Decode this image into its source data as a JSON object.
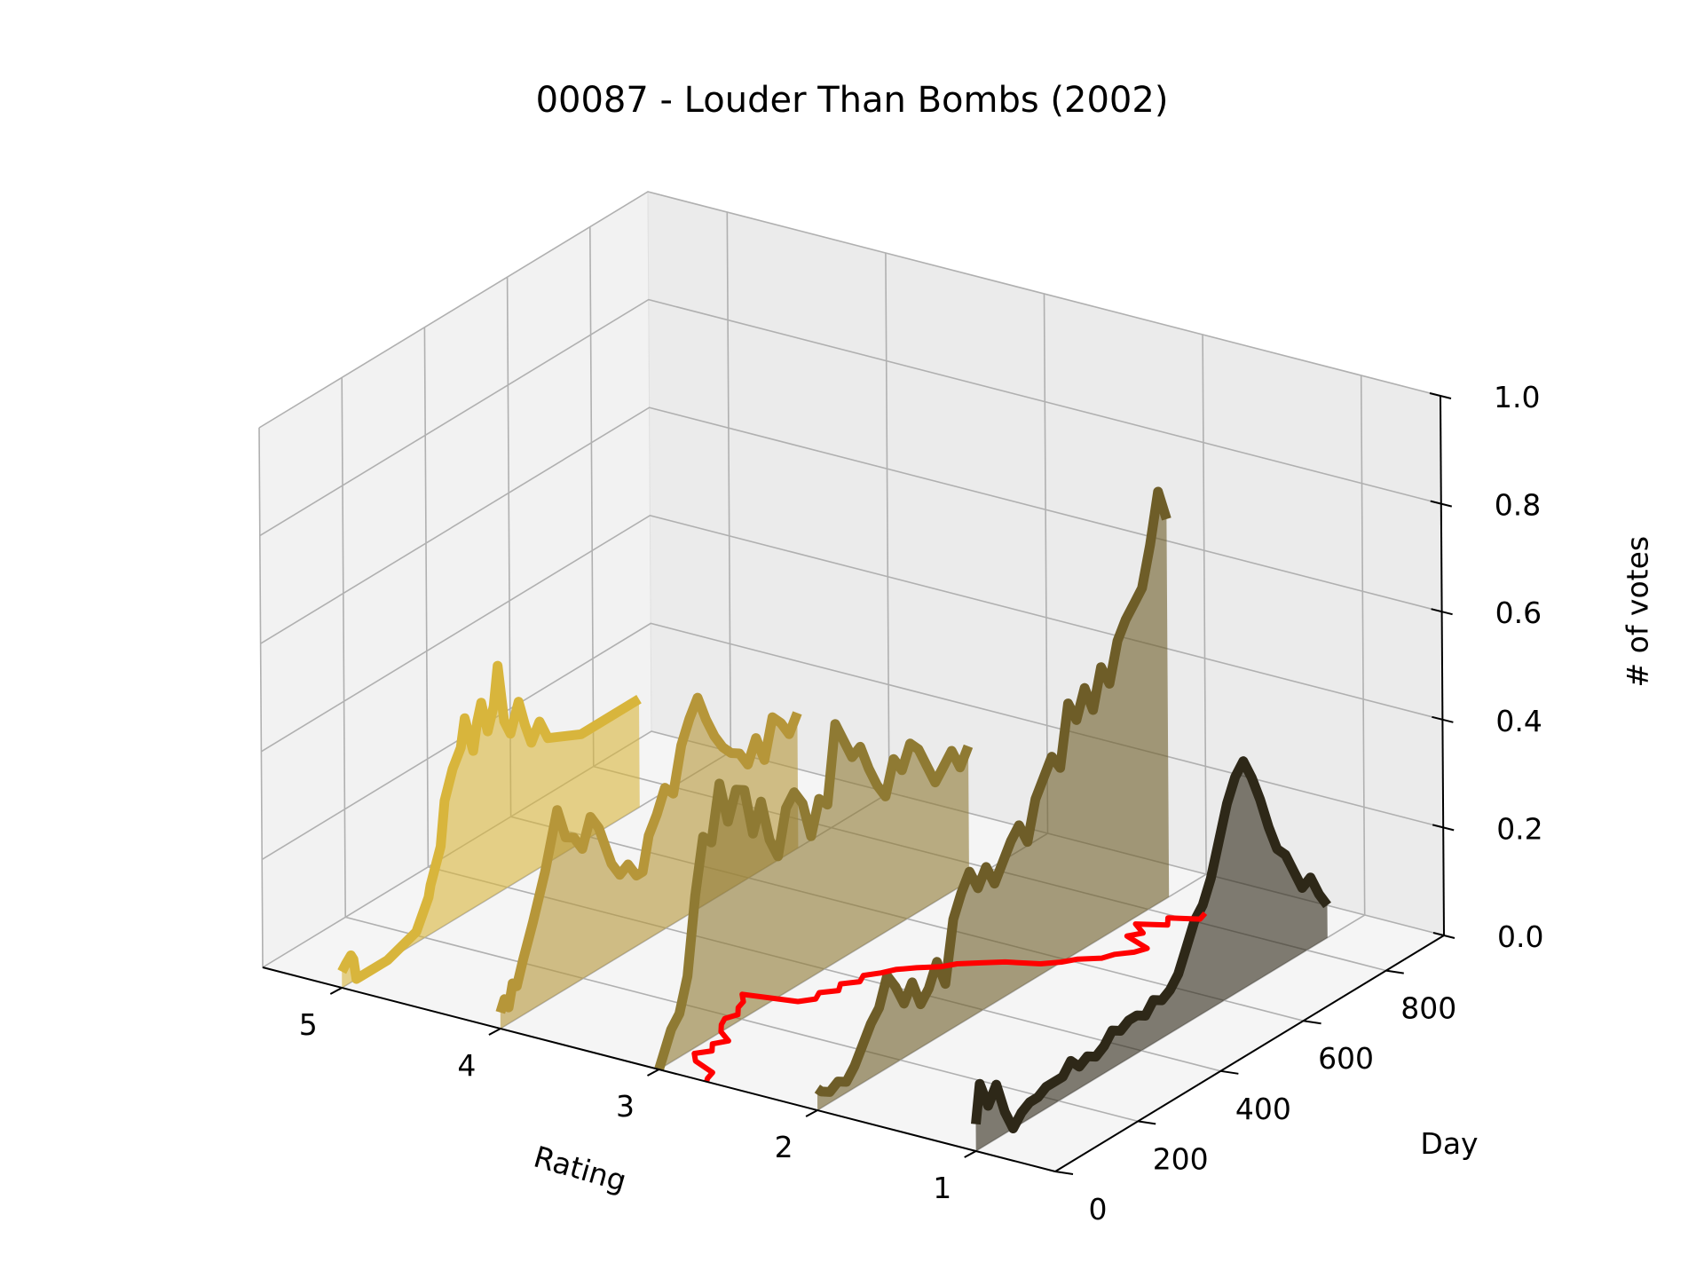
{
  "chart_data": {
    "type": "line",
    "view": "3d",
    "title": "00087 - Louder Than Bombs (2002)",
    "xlabel": "Rating",
    "ylabel": "Day",
    "zlabel": "# of votes",
    "x_ticks": [
      "5",
      "4",
      "3",
      "2",
      "1"
    ],
    "y_ticks": [
      "0",
      "200",
      "400",
      "600",
      "800"
    ],
    "z_ticks": [
      "0.0",
      "0.2",
      "0.4",
      "0.6",
      "0.8",
      "1.0"
    ],
    "xlim": [
      0.5,
      5.5
    ],
    "ylim": [
      0,
      940
    ],
    "zlim": [
      0,
      1
    ],
    "grid": true,
    "series": [
      {
        "rating": 5,
        "color": "#d8b53c",
        "days": [
          0,
          10,
          22,
          28,
          35,
          60,
          110,
          180,
          210,
          215,
          240,
          250,
          270,
          290,
          300,
          320,
          330,
          340,
          355,
          370,
          380,
          395,
          410,
          430,
          445,
          460,
          480,
          500,
          580,
          700,
          720
        ],
        "values": [
          0.03,
          0.04,
          0.05,
          0.04,
          0.0,
          0.0,
          0.0,
          0.02,
          0.07,
          0.09,
          0.15,
          0.23,
          0.28,
          0.31,
          0.36,
          0.29,
          0.34,
          0.37,
          0.31,
          0.35,
          0.42,
          0.31,
          0.28,
          0.33,
          0.28,
          0.24,
          0.27,
          0.23,
          0.2,
          0.2,
          0.2
        ]
      },
      {
        "rating": 4,
        "color": "#b69639",
        "days": [
          0,
          10,
          20,
          30,
          40,
          55,
          80,
          110,
          140,
          160,
          180,
          200,
          220,
          240,
          255,
          270,
          290,
          310,
          330,
          345,
          360,
          380,
          400,
          420,
          440,
          460,
          480,
          500,
          520,
          540,
          560,
          580,
          600,
          620,
          640,
          660,
          680,
          700,
          720
        ],
        "values": [
          0.03,
          0.05,
          0.03,
          0.07,
          0.06,
          0.1,
          0.16,
          0.24,
          0.34,
          0.28,
          0.27,
          0.24,
          0.29,
          0.26,
          0.22,
          0.18,
          0.15,
          0.16,
          0.13,
          0.13,
          0.19,
          0.22,
          0.26,
          0.24,
          0.32,
          0.36,
          0.39,
          0.34,
          0.3,
          0.27,
          0.25,
          0.24,
          0.21,
          0.25,
          0.2,
          0.27,
          0.25,
          0.22,
          0.25
        ]
      },
      {
        "rating": 3,
        "color": "#8f7a33",
        "days": [
          0,
          10,
          30,
          50,
          70,
          90,
          110,
          130,
          150,
          170,
          190,
          210,
          230,
          250,
          270,
          290,
          310,
          330,
          350,
          370,
          390,
          410,
          430,
          450,
          470,
          490,
          510,
          530,
          550,
          570,
          590,
          610,
          630,
          650,
          670,
          690,
          710,
          730,
          750
        ],
        "values": [
          0.0,
          0.02,
          0.06,
          0.08,
          0.14,
          0.28,
          0.38,
          0.36,
          0.46,
          0.38,
          0.43,
          0.42,
          0.33,
          0.38,
          0.3,
          0.26,
          0.34,
          0.36,
          0.33,
          0.26,
          0.32,
          0.3,
          0.44,
          0.4,
          0.36,
          0.37,
          0.32,
          0.28,
          0.25,
          0.31,
          0.28,
          0.32,
          0.3,
          0.26,
          0.22,
          0.24,
          0.26,
          0.22,
          0.25
        ]
      },
      {
        "rating": 2,
        "color": "#6e5d28",
        "days": [
          0,
          10,
          30,
          50,
          70,
          90,
          110,
          130,
          150,
          170,
          190,
          210,
          230,
          250,
          270,
          290,
          310,
          330,
          350,
          370,
          390,
          410,
          430,
          450,
          470,
          490,
          510,
          530,
          550,
          570,
          590,
          610,
          630,
          650,
          670,
          690,
          710,
          730,
          750,
          770,
          790,
          810,
          830,
          850
        ],
        "values": [
          0.04,
          0.03,
          0.02,
          0.03,
          0.02,
          0.04,
          0.07,
          0.1,
          0.12,
          0.17,
          0.14,
          0.1,
          0.13,
          0.08,
          0.1,
          0.14,
          0.09,
          0.2,
          0.24,
          0.27,
          0.23,
          0.26,
          0.22,
          0.25,
          0.28,
          0.3,
          0.26,
          0.33,
          0.36,
          0.39,
          0.36,
          0.47,
          0.43,
          0.48,
          0.43,
          0.5,
          0.46,
          0.53,
          0.56,
          0.58,
          0.6,
          0.67,
          0.76,
          0.7
        ]
      },
      {
        "rating": 1,
        "color": "#2e2818",
        "days": [
          0,
          10,
          30,
          50,
          70,
          90,
          110,
          130,
          150,
          170,
          190,
          210,
          230,
          250,
          270,
          290,
          310,
          330,
          350,
          370,
          390,
          410,
          430,
          450,
          470,
          490,
          510,
          530,
          550,
          570,
          590,
          610,
          630,
          650,
          670,
          690,
          710,
          730,
          750,
          770,
          790,
          810,
          830,
          850
        ],
        "values": [
          0.05,
          0.12,
          0.07,
          0.1,
          0.04,
          0.0,
          0.02,
          0.03,
          0.03,
          0.04,
          0.04,
          0.04,
          0.06,
          0.04,
          0.05,
          0.04,
          0.05,
          0.07,
          0.06,
          0.07,
          0.07,
          0.06,
          0.08,
          0.07,
          0.08,
          0.1,
          0.14,
          0.18,
          0.2,
          0.24,
          0.3,
          0.36,
          0.4,
          0.42,
          0.38,
          0.33,
          0.27,
          0.22,
          0.2,
          0.16,
          0.12,
          0.13,
          0.09,
          0.06
        ]
      },
      {
        "rating": "mean",
        "color": "#ff0000",
        "days": [
          0,
          10,
          30,
          50,
          70,
          90,
          110,
          130,
          150,
          170,
          190,
          210,
          230,
          250,
          270,
          290,
          310,
          330,
          350,
          370,
          390,
          410,
          430,
          450,
          470,
          490,
          510,
          530,
          550,
          570,
          590,
          610,
          630,
          650,
          670,
          690,
          710,
          730,
          750,
          770,
          790,
          810,
          830
        ],
        "values": [
          0.0,
          0.0,
          0.0,
          0.0,
          0.0,
          0.0,
          0.0,
          0.0,
          0.0,
          0.0,
          0.0,
          0.0,
          0.0,
          0.0,
          0.0,
          0.0,
          0.0,
          0.0,
          0.0,
          0.0,
          0.0,
          0.0,
          0.0,
          0.0,
          0.0,
          0.0,
          0.0,
          0.0,
          0.0,
          0.0,
          0.0,
          0.0,
          0.0,
          0.0,
          0.0,
          0.0,
          0.0,
          0.0,
          0.0,
          0.0,
          0.0,
          0.0,
          0.0
        ],
        "ratings": [
          2.7,
          2.72,
          2.74,
          2.9,
          2.96,
          2.9,
          2.95,
          2.9,
          3.0,
          3.05,
          3.08,
          3.05,
          3.1,
          3.12,
          3.18,
          2.88,
          2.82,
          2.85,
          2.78,
          2.82,
          2.75,
          2.78,
          2.72,
          2.68,
          2.6,
          2.5,
          2.45,
          2.35,
          2.25,
          2.08,
          2.0,
          1.95,
          1.85,
          1.82,
          1.75,
          1.72,
          1.9,
          1.85,
          1.95,
          1.8,
          1.85,
          1.7,
          1.72
        ]
      }
    ]
  }
}
